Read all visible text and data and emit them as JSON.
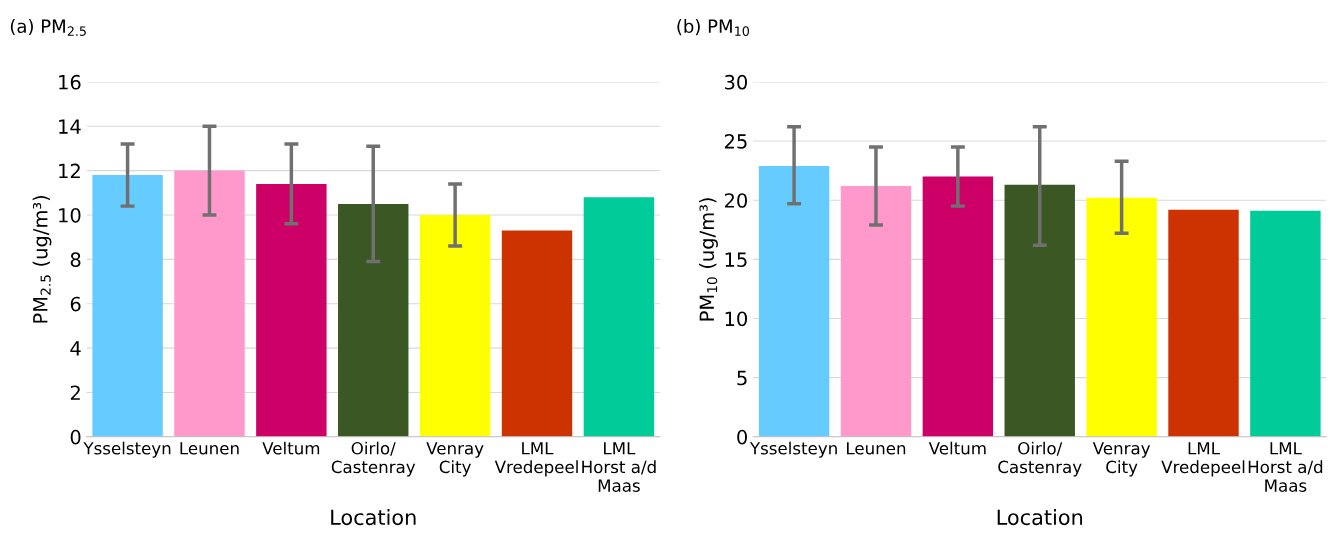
{
  "chart_data": [
    {
      "type": "bar",
      "title": "(a) PM$_{2.5}$",
      "xlabel": "Location",
      "ylabel": "PM$_{2.5}$ (ug/m³)",
      "categories": [
        "Ysselsteyn",
        "Leunen",
        "Veltum",
        "Oirlo/\nCastenray",
        "Venray\nCity",
        "LML\nVredepeel",
        "LML\nHorst a/d\nMaas"
      ],
      "values": [
        11.8,
        12.0,
        11.4,
        10.5,
        10.0,
        9.3,
        10.8
      ],
      "colors": [
        "#66ccff",
        "#ff99cc",
        "#cc0066",
        "#3b5723",
        "#ffff00",
        "#cc3300",
        "#00cc99"
      ],
      "errors": [
        [
          10.4,
          13.2
        ],
        [
          10.0,
          14.0
        ],
        [
          9.6,
          13.2
        ],
        [
          7.9,
          13.1
        ],
        [
          8.6,
          11.4
        ],
        null,
        null
      ],
      "ylim": [
        0,
        16
      ],
      "yticks": [
        0,
        2,
        4,
        6,
        8,
        10,
        12,
        14,
        16
      ],
      "grid": "y"
    },
    {
      "type": "bar",
      "title": "(b) PM$_{10}$",
      "xlabel": "Location",
      "ylabel": "PM$_{10}$ (ug/m³)",
      "categories": [
        "Ysselsteyn",
        "Leunen",
        "Veltum",
        "Oirlo/\nCastenray",
        "Venray\nCity",
        "LML\nVredepeel",
        "LML\nHorst a/d\nMaas"
      ],
      "values": [
        22.9,
        21.2,
        22.0,
        21.3,
        20.2,
        19.2,
        19.1
      ],
      "colors": [
        "#66ccff",
        "#ff99cc",
        "#cc0066",
        "#3b5723",
        "#ffff00",
        "#cc3300",
        "#00cc99"
      ],
      "errors": [
        [
          19.7,
          26.2
        ],
        [
          17.9,
          24.5
        ],
        [
          19.5,
          24.5
        ],
        [
          16.2,
          26.2
        ],
        [
          17.2,
          23.3
        ],
        null,
        null
      ],
      "ylim": [
        0,
        30
      ],
      "yticks": [
        0,
        5,
        10,
        15,
        20,
        25,
        30
      ],
      "grid": "y"
    }
  ]
}
